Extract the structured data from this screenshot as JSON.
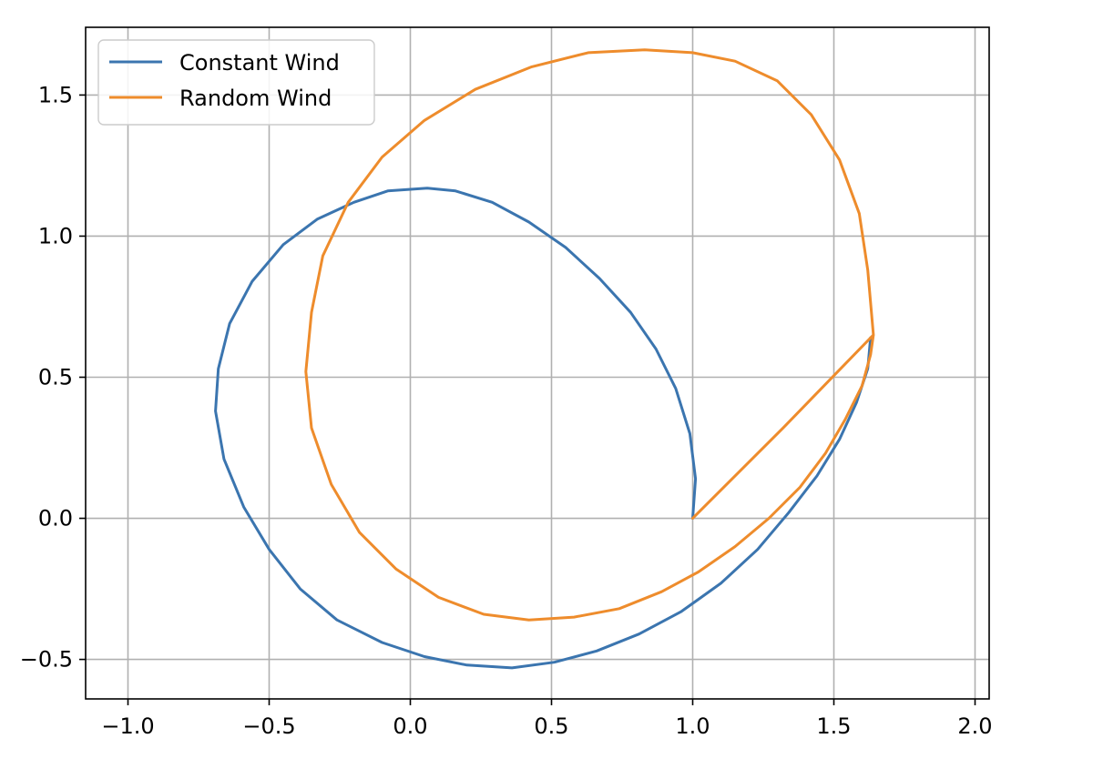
{
  "chart_data": {
    "type": "line",
    "title": "",
    "xlabel": "",
    "ylabel": "",
    "xlim": [
      -1.15,
      2.05
    ],
    "ylim": [
      -0.64,
      1.74
    ],
    "grid": true,
    "legend_position": "top-left",
    "x_ticks": [
      {
        "value": -1.0,
        "label": "−1.0"
      },
      {
        "value": -0.5,
        "label": "−0.5"
      },
      {
        "value": 0.0,
        "label": "0.0"
      },
      {
        "value": 0.5,
        "label": "0.5"
      },
      {
        "value": 1.0,
        "label": "1.0"
      },
      {
        "value": 1.5,
        "label": "1.5"
      },
      {
        "value": 2.0,
        "label": "2.0"
      }
    ],
    "y_ticks": [
      {
        "value": -0.5,
        "label": "−0.5"
      },
      {
        "value": 0.0,
        "label": "0.0"
      },
      {
        "value": 0.5,
        "label": "0.5"
      },
      {
        "value": 1.0,
        "label": "1.0"
      },
      {
        "value": 1.5,
        "label": "1.5"
      }
    ],
    "series": [
      {
        "name": "Constant Wind",
        "color": "#3b75af",
        "x": [
          1.0,
          1.01,
          0.99,
          0.94,
          0.87,
          0.78,
          0.67,
          0.55,
          0.42,
          0.29,
          0.16,
          0.06,
          -0.08,
          -0.2,
          -0.33,
          -0.45,
          -0.56,
          -0.64,
          -0.68,
          -0.69,
          -0.66,
          -0.59,
          -0.5,
          -0.39,
          -0.26,
          -0.1,
          0.05,
          0.2,
          0.36,
          0.51,
          0.66,
          0.81,
          0.96,
          1.1,
          1.23,
          1.34,
          1.44,
          1.52,
          1.58,
          1.62,
          1.63
        ],
        "y": [
          0.0,
          0.14,
          0.3,
          0.46,
          0.6,
          0.73,
          0.85,
          0.96,
          1.05,
          1.12,
          1.16,
          1.17,
          1.16,
          1.12,
          1.06,
          0.97,
          0.84,
          0.69,
          0.53,
          0.38,
          0.21,
          0.04,
          -0.11,
          -0.25,
          -0.36,
          -0.44,
          -0.49,
          -0.52,
          -0.53,
          -0.51,
          -0.47,
          -0.41,
          -0.33,
          -0.23,
          -0.11,
          0.02,
          0.15,
          0.28,
          0.41,
          0.53,
          0.64
        ]
      },
      {
        "name": "Random Wind",
        "color": "#ee8c2c",
        "x": [
          1.0,
          1.32,
          1.64,
          1.62,
          1.59,
          1.52,
          1.42,
          1.3,
          1.15,
          1.0,
          0.83,
          0.63,
          0.43,
          0.23,
          0.05,
          -0.1,
          -0.22,
          -0.31,
          -0.35,
          -0.37,
          -0.35,
          -0.28,
          -0.18,
          -0.05,
          0.1,
          0.26,
          0.42,
          0.58,
          0.74,
          0.89,
          1.02,
          1.15,
          1.27,
          1.38,
          1.47,
          1.54,
          1.6,
          1.63,
          1.64
        ],
        "y": [
          0.0,
          0.32,
          0.65,
          0.88,
          1.08,
          1.27,
          1.43,
          1.55,
          1.62,
          1.65,
          1.66,
          1.65,
          1.6,
          1.52,
          1.41,
          1.28,
          1.12,
          0.93,
          0.73,
          0.52,
          0.32,
          0.12,
          -0.05,
          -0.18,
          -0.28,
          -0.34,
          -0.36,
          -0.35,
          -0.32,
          -0.26,
          -0.19,
          -0.1,
          0.0,
          0.11,
          0.23,
          0.35,
          0.47,
          0.58,
          0.65
        ]
      }
    ]
  }
}
